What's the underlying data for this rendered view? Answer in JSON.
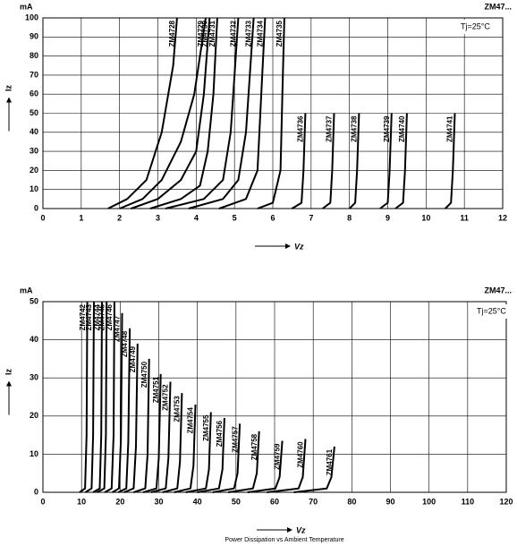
{
  "chart_data": [
    {
      "type": "line",
      "title": "ZM47...",
      "y_unit": "mA",
      "ylabel": "Iz",
      "xlabel": "Vz",
      "annotation": "Tj=25°C",
      "color": "#000000",
      "grid": true,
      "xlim": [
        0,
        12
      ],
      "xticks": [
        0,
        1,
        2,
        3,
        4,
        5,
        6,
        7,
        8,
        9,
        10,
        11,
        12
      ],
      "ylim": [
        0,
        100
      ],
      "yticks": [
        0,
        10,
        20,
        30,
        40,
        50,
        60,
        70,
        80,
        90,
        100
      ],
      "series": [
        {
          "name": "ZM4728",
          "x": [
            1.7,
            2.2,
            2.7,
            3.1,
            3.4,
            3.5
          ],
          "values": [
            0,
            5,
            15,
            40,
            75,
            100
          ]
        },
        {
          "name": "ZM4729",
          "x": [
            2.0,
            2.6,
            3.1,
            3.6,
            3.95,
            4.25
          ],
          "values": [
            0,
            5,
            15,
            35,
            60,
            100
          ]
        },
        {
          "name": "ZM4730",
          "x": [
            2.3,
            3.0,
            3.6,
            4.0,
            4.2,
            4.35
          ],
          "values": [
            0,
            5,
            15,
            30,
            60,
            100
          ]
        },
        {
          "name": "ZM4731",
          "x": [
            2.8,
            3.6,
            4.1,
            4.3,
            4.45,
            4.55
          ],
          "values": [
            0,
            5,
            12,
            30,
            60,
            100
          ]
        },
        {
          "name": "ZM4732",
          "x": [
            3.2,
            4.2,
            4.7,
            4.9,
            5.0,
            5.1
          ],
          "values": [
            0,
            5,
            15,
            40,
            70,
            100
          ]
        },
        {
          "name": "ZM4733",
          "x": [
            3.8,
            4.7,
            5.1,
            5.3,
            5.4,
            5.5
          ],
          "values": [
            0,
            5,
            15,
            40,
            70,
            100
          ]
        },
        {
          "name": "ZM4734",
          "x": [
            4.6,
            5.3,
            5.6,
            5.7,
            5.8
          ],
          "values": [
            0,
            5,
            20,
            60,
            100
          ]
        },
        {
          "name": "ZM4735",
          "x": [
            5.6,
            6.0,
            6.2,
            6.25,
            6.3
          ],
          "values": [
            0,
            3,
            20,
            60,
            100
          ]
        },
        {
          "name": "ZM4736",
          "x": [
            6.5,
            6.75,
            6.8,
            6.85
          ],
          "values": [
            0,
            3,
            20,
            50
          ]
        },
        {
          "name": "ZM4737",
          "x": [
            7.3,
            7.5,
            7.55,
            7.6
          ],
          "values": [
            0,
            3,
            20,
            50
          ]
        },
        {
          "name": "ZM4738",
          "x": [
            8.0,
            8.15,
            8.2,
            8.25
          ],
          "values": [
            0,
            3,
            20,
            50
          ]
        },
        {
          "name": "ZM4739",
          "x": [
            8.8,
            9.0,
            9.05,
            9.1
          ],
          "values": [
            0,
            3,
            20,
            50
          ]
        },
        {
          "name": "ZM4740",
          "x": [
            9.2,
            9.4,
            9.45,
            9.5
          ],
          "values": [
            0,
            3,
            20,
            50
          ]
        },
        {
          "name": "ZM4741",
          "x": [
            10.5,
            10.65,
            10.7,
            10.75
          ],
          "values": [
            0,
            3,
            20,
            50
          ]
        }
      ]
    },
    {
      "type": "line",
      "title": "ZM47...",
      "y_unit": "mA",
      "ylabel": "Iz",
      "xlabel": "Vz",
      "annotation": "Tj=25°C",
      "color": "#000000",
      "grid": true,
      "xlim": [
        0,
        120
      ],
      "xticks": [
        0,
        10,
        20,
        30,
        40,
        50,
        60,
        70,
        80,
        90,
        100,
        110,
        120
      ],
      "ylim": [
        0,
        50
      ],
      "yticks": [
        0,
        10,
        20,
        30,
        40,
        50
      ],
      "series": [
        {
          "name": "ZM4742",
          "x": [
            9.5,
            10.9,
            11.3,
            11.5
          ],
          "values": [
            0,
            1,
            15,
            50
          ]
        },
        {
          "name": "ZM4743",
          "x": [
            11,
            12.6,
            13.0,
            13.2
          ],
          "values": [
            0,
            1,
            15,
            50
          ]
        },
        {
          "name": "ZM4744",
          "x": [
            13,
            14.7,
            15.1,
            15.3
          ],
          "values": [
            0,
            1,
            15,
            50
          ]
        },
        {
          "name": "ZM4745",
          "x": [
            14,
            15.9,
            16.3,
            16.5
          ],
          "values": [
            0,
            1,
            15,
            50
          ]
        },
        {
          "name": "ZM4746",
          "x": [
            16,
            17.8,
            18.3,
            18.5
          ],
          "values": [
            0,
            1,
            15,
            50
          ]
        },
        {
          "name": "ZM4747",
          "x": [
            18,
            19.7,
            20.2,
            20.5
          ],
          "values": [
            0,
            1,
            14,
            47
          ]
        },
        {
          "name": "ZM4748",
          "x": [
            19.5,
            21.6,
            22.1,
            22.5
          ],
          "values": [
            0,
            1,
            13,
            43
          ]
        },
        {
          "name": "ZM4749",
          "x": [
            21,
            23.5,
            24.1,
            24.5
          ],
          "values": [
            0,
            1,
            12,
            39
          ]
        },
        {
          "name": "ZM4750",
          "x": [
            23.5,
            26.5,
            27.1,
            27.5
          ],
          "values": [
            0,
            1,
            10,
            35
          ]
        },
        {
          "name": "ZM4751",
          "x": [
            26,
            29.4,
            30.0,
            30.5
          ],
          "values": [
            0,
            1,
            9,
            31
          ]
        },
        {
          "name": "ZM4752",
          "x": [
            28,
            31.8,
            32.5,
            33
          ],
          "values": [
            0,
            1,
            9,
            29
          ]
        },
        {
          "name": "ZM4753",
          "x": [
            31,
            34.8,
            35.5,
            36
          ],
          "values": [
            0,
            1,
            8,
            26
          ]
        },
        {
          "name": "ZM4754",
          "x": [
            34,
            38.2,
            39,
            39.5
          ],
          "values": [
            0,
            1,
            7,
            23
          ]
        },
        {
          "name": "ZM4755",
          "x": [
            37,
            42.2,
            43,
            43.5
          ],
          "values": [
            0,
            1,
            6,
            21
          ]
        },
        {
          "name": "ZM4756",
          "x": [
            40,
            45.6,
            46.5,
            47
          ],
          "values": [
            0,
            1,
            6,
            19.5
          ]
        },
        {
          "name": "ZM4757",
          "x": [
            44,
            49.5,
            50.4,
            51
          ],
          "values": [
            0,
            1,
            5,
            18
          ]
        },
        {
          "name": "ZM4758",
          "x": [
            48,
            54.4,
            55.4,
            56
          ],
          "values": [
            0,
            1,
            5,
            16
          ]
        },
        {
          "name": "ZM4759",
          "x": [
            53,
            60.2,
            61.3,
            62
          ],
          "values": [
            0,
            1,
            4,
            13.5
          ]
        },
        {
          "name": "ZM4760",
          "x": [
            58,
            66.2,
            67.3,
            68
          ],
          "values": [
            0,
            1,
            4,
            14
          ]
        },
        {
          "name": "ZM4761",
          "x": [
            65,
            73.5,
            74.7,
            75.5
          ],
          "values": [
            0,
            1,
            4,
            12
          ]
        }
      ]
    }
  ],
  "caption": "Power Dissipation vs Ambient Temperature"
}
